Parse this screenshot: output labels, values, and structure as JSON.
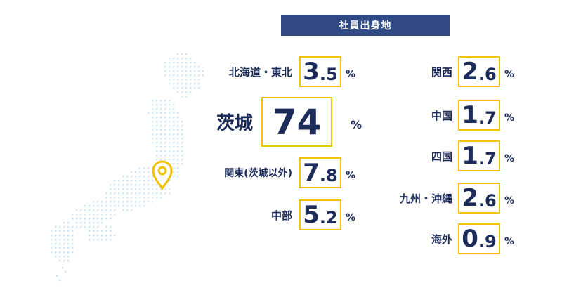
{
  "title": "社員出身地",
  "chart_data": {
    "type": "table",
    "unit": "%",
    "items": [
      {
        "region": "北海道・東北",
        "int": "3",
        "dec": ".5",
        "value": 3.5
      },
      {
        "region": "茨城",
        "int": "74",
        "dec": "",
        "value": 74
      },
      {
        "region": "関東(茨城以外)",
        "int": "7",
        "dec": ".8",
        "value": 7.8
      },
      {
        "region": "中部",
        "int": "5",
        "dec": ".2",
        "value": 5.2
      },
      {
        "region": "関西",
        "int": "2",
        "dec": ".6",
        "value": 2.6
      },
      {
        "region": "中国",
        "int": "1",
        "dec": ".7",
        "value": 1.7
      },
      {
        "region": "四国",
        "int": "1",
        "dec": ".7",
        "value": 1.7
      },
      {
        "region": "九州・沖縄",
        "int": "2",
        "dec": ".6",
        "value": 2.6
      },
      {
        "region": "海外",
        "int": "0",
        "dec": ".9",
        "value": 0.9
      }
    ]
  },
  "colors": {
    "navy": "#1c2b5a",
    "title_bg": "#2f4a85",
    "box_border": "#f2c200",
    "map_dot": "#cfe4f0",
    "pin": "#f2c200"
  }
}
